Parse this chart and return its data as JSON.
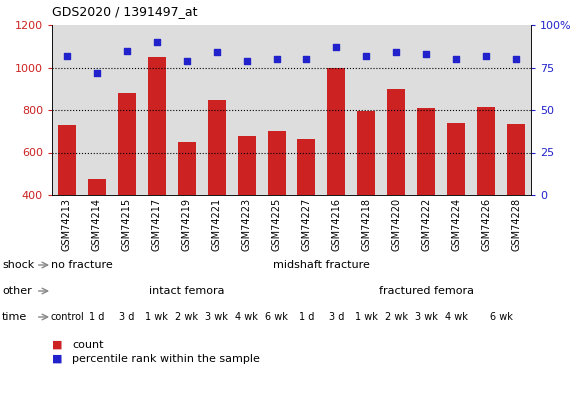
{
  "title": "GDS2020 / 1391497_at",
  "samples": [
    "GSM74213",
    "GSM74214",
    "GSM74215",
    "GSM74217",
    "GSM74219",
    "GSM74221",
    "GSM74223",
    "GSM74225",
    "GSM74227",
    "GSM74216",
    "GSM74218",
    "GSM74220",
    "GSM74222",
    "GSM74224",
    "GSM74226",
    "GSM74228"
  ],
  "counts": [
    730,
    475,
    880,
    1050,
    650,
    845,
    680,
    700,
    665,
    1000,
    795,
    900,
    810,
    740,
    815,
    735
  ],
  "percentile": [
    82,
    72,
    85,
    90,
    79,
    84,
    79,
    80,
    80,
    87,
    82,
    84,
    83,
    80,
    82,
    80
  ],
  "bar_color": "#cc2222",
  "dot_color": "#2222cc",
  "ylim_left": [
    400,
    1200
  ],
  "ylim_right": [
    0,
    100
  ],
  "yticks_left": [
    400,
    600,
    800,
    1000,
    1200
  ],
  "yticks_right": [
    0,
    25,
    50,
    75,
    100
  ],
  "grid_values": [
    600,
    800,
    1000
  ],
  "shock_labels": [
    {
      "text": "no fracture",
      "start": 0,
      "end": 2,
      "color": "#99dd77"
    },
    {
      "text": "midshaft fracture",
      "start": 2,
      "end": 16,
      "color": "#55cc33"
    }
  ],
  "other_labels": [
    {
      "text": "intact femora",
      "start": 0,
      "end": 9,
      "color": "#bbbbee"
    },
    {
      "text": "fractured femora",
      "start": 9,
      "end": 16,
      "color": "#6666cc"
    }
  ],
  "time_labels": [
    {
      "text": "control",
      "start": 0,
      "end": 1,
      "color": "#ffdddd"
    },
    {
      "text": "1 d",
      "start": 1,
      "end": 2,
      "color": "#ffdddd"
    },
    {
      "text": "3 d",
      "start": 2,
      "end": 3,
      "color": "#ffdddd"
    },
    {
      "text": "1 wk",
      "start": 3,
      "end": 4,
      "color": "#ffbbbb"
    },
    {
      "text": "2 wk",
      "start": 4,
      "end": 5,
      "color": "#ffbbbb"
    },
    {
      "text": "3 wk",
      "start": 5,
      "end": 6,
      "color": "#ffbbbb"
    },
    {
      "text": "4 wk",
      "start": 6,
      "end": 7,
      "color": "#ee9999"
    },
    {
      "text": "6 wk",
      "start": 7,
      "end": 8,
      "color": "#dd6666"
    },
    {
      "text": "1 d",
      "start": 8,
      "end": 9,
      "color": "#ffbbbb"
    },
    {
      "text": "3 d",
      "start": 9,
      "end": 10,
      "color": "#ffbbbb"
    },
    {
      "text": "1 wk",
      "start": 10,
      "end": 11,
      "color": "#ffbbbb"
    },
    {
      "text": "2 wk",
      "start": 11,
      "end": 12,
      "color": "#ffbbbb"
    },
    {
      "text": "3 wk",
      "start": 12,
      "end": 13,
      "color": "#ffbbbb"
    },
    {
      "text": "4 wk",
      "start": 13,
      "end": 14,
      "color": "#ee9999"
    },
    {
      "text": "6 wk",
      "start": 14,
      "end": 16,
      "color": "#ee9999"
    }
  ],
  "row_labels": [
    "shock",
    "other",
    "time"
  ],
  "axis_bg_color": "#dddddd",
  "legend_count_color": "#cc2222",
  "legend_dot_color": "#2222cc",
  "label_arrow_color": "#888888"
}
